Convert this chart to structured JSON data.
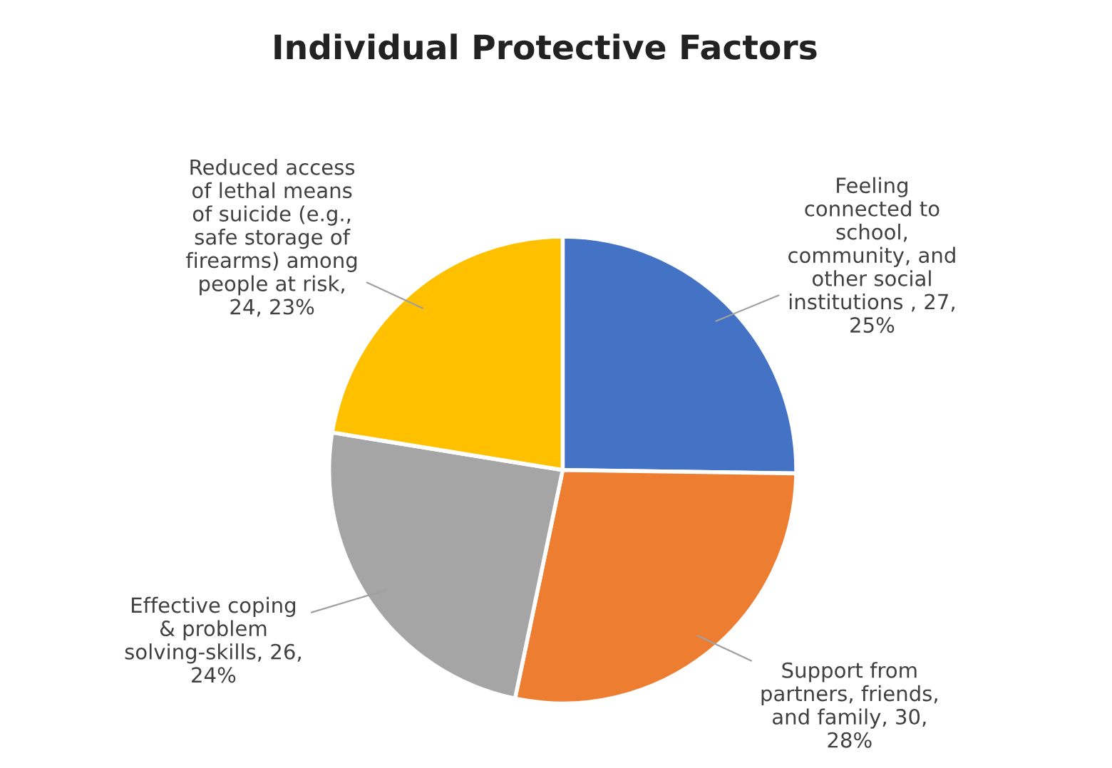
{
  "chart_data": {
    "type": "pie",
    "title": "Individual Protective Factors",
    "categories": [
      "Feeling\nconnected to\nschool,\ncommunity, and\nother social\ninstitutions",
      "Support from\npartners, friends,\nand family",
      "Effective coping\n& problem\nsolving-skills",
      "Reduced access\nof lethal means\nof suicide (e.g.,\nsafe storage of\nfirearms) among\npeople at risk"
    ],
    "values": [
      27,
      30,
      26,
      24
    ],
    "value_labels": [
      " , 27,\n25%",
      ", 30,\n28%",
      ", 26,\n24%",
      ",\n24, 23%"
    ],
    "colors": [
      "#4472c4",
      "#ed7d31",
      "#a5a5a5",
      "#ffc000"
    ],
    "legend": false
  }
}
